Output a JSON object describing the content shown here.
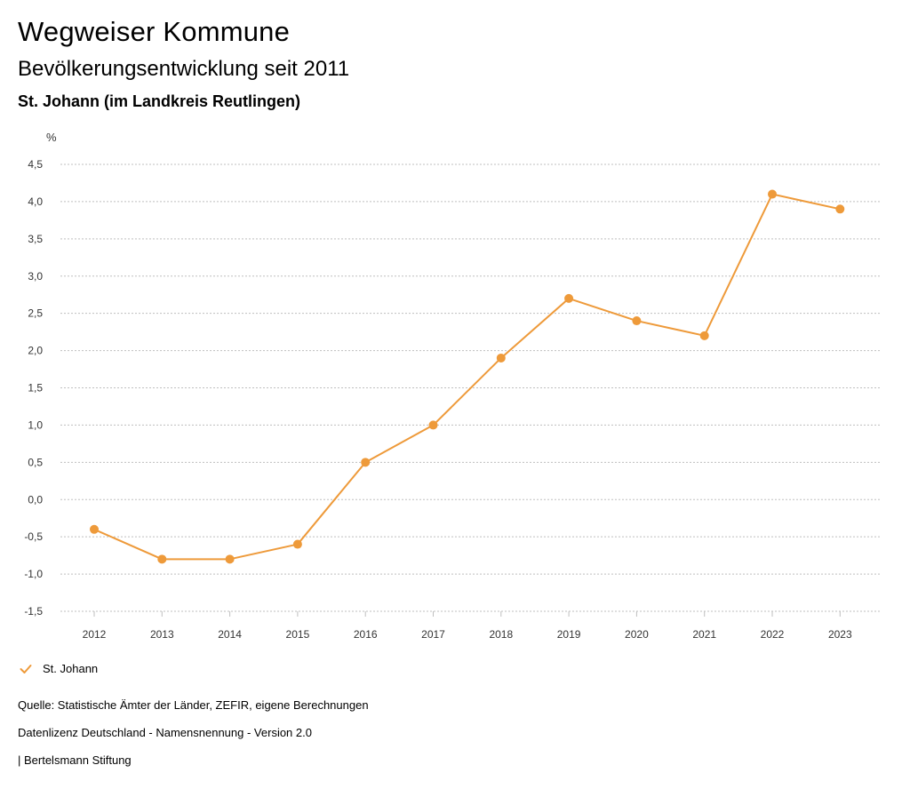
{
  "header": {
    "title": "Wegweiser Kommune",
    "subtitle": "Bevölkerungsentwicklung seit 2011",
    "region": "St. Johann (im Landkreis Reutlingen)"
  },
  "chart_data": {
    "type": "line",
    "title": "Bevölkerungsentwicklung seit 2011",
    "ylabel": "%",
    "xlabel": "",
    "ylim": [
      -1.5,
      4.5
    ],
    "yticks": [
      "-1,5",
      "-1,0",
      "-0,5",
      "0,0",
      "0,5",
      "1,0",
      "1,5",
      "2,0",
      "2,5",
      "3,0",
      "3,5",
      "4,0",
      "4,5"
    ],
    "ytick_values": [
      -1.5,
      -1.0,
      -0.5,
      0.0,
      0.5,
      1.0,
      1.5,
      2.0,
      2.5,
      3.0,
      3.5,
      4.0,
      4.5
    ],
    "categories": [
      "2012",
      "2013",
      "2014",
      "2015",
      "2016",
      "2017",
      "2018",
      "2019",
      "2020",
      "2021",
      "2022",
      "2023"
    ],
    "series": [
      {
        "name": "St. Johann",
        "color": "#ee9a3a",
        "values": [
          -0.4,
          -0.8,
          -0.8,
          -0.6,
          0.5,
          1.0,
          1.9,
          2.7,
          2.4,
          2.2,
          4.1,
          3.9
        ]
      }
    ],
    "grid": true,
    "legend": "bottom-left"
  },
  "legend": {
    "label": "St. Johann",
    "icon": "check-icon",
    "color": "#ee9a3a"
  },
  "footer": {
    "source": "Quelle: Statistische Ämter der Länder, ZEFIR, eigene Berechnungen",
    "license": "Datenlizenz Deutschland - Namensnennung - Version 2.0",
    "publisher": "| Bertelsmann Stiftung"
  }
}
